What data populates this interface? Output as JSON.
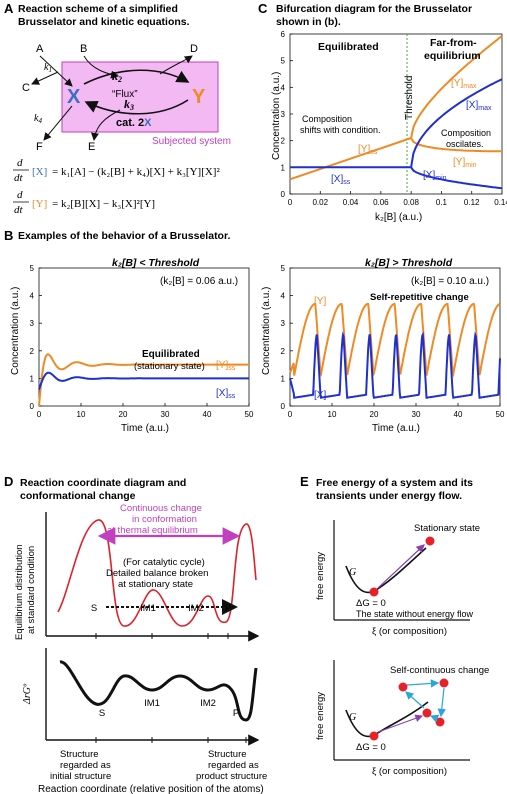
{
  "panel_a": {
    "letter": "A",
    "title_line1": "Reaction scheme of a simplified",
    "title_line2": "Brusselator and kinetic equations.",
    "species_a": "A",
    "species_b": "B",
    "species_c": "C",
    "species_d": "D",
    "species_e": "E",
    "species_f": "F",
    "x": "X",
    "y": "Y",
    "k1": "k",
    "k1_sub": "1",
    "k2": "k",
    "k2_sub": "2",
    "k3": "k",
    "k3_sub": "3",
    "k4": "k",
    "k4_sub": "4",
    "flux": "“Flux”",
    "cat": "cat. 2",
    "cat_x": "X",
    "subjected": "Subjected system",
    "eq1": "= k₁[A] − (k₂[B] + k₄)[X] + k₃[Y][X]²",
    "eq2": "= k₂[B][X] − k₃[X]²[Y]",
    "dt_d": "d",
    "dt_dt": "dt",
    "eq1_lhs": "[X]",
    "eq2_lhs": "[Y]",
    "colors": {
      "x": "#3a6fc4",
      "y": "#f08a24",
      "box": "#f2b9f2",
      "box_border": "#c040c0"
    }
  },
  "panel_b": {
    "letter": "B",
    "title": "Examples of the behavior of a Brusselator.",
    "left": {
      "heading": "k₂[B] < Threshold",
      "sub": "(k₂[B] = 0.06 a.u.)",
      "label_eq": "Equilibrated",
      "label_ss": "(stationary state)",
      "y_ss": "[Y]",
      "x_ss": "[X]",
      "ss_sub": "ss"
    },
    "right": {
      "heading": "k₂[B] > Threshold",
      "sub": "(k₂[B] = 0.10 a.u.)",
      "label": "Self-repetitive change",
      "y": "[Y]",
      "x": "[X]"
    },
    "ylabel": "Concentration (a.u.)",
    "xlabel": "Time (a.u.)",
    "xticks": [
      "0",
      "10",
      "20",
      "30",
      "40",
      "50"
    ],
    "yticks": [
      "0",
      "1",
      "2",
      "3",
      "4",
      "5"
    ]
  },
  "panel_c": {
    "letter": "C",
    "title_line1": "Bifurcation diagram for the Brusselator",
    "title_line2": "shown in (b).",
    "equilibrated": "Equilibrated",
    "far1": "Far-from-",
    "far2": "equilibrium",
    "threshold": "Threshold",
    "comp_shifts1": "Composition",
    "comp_shifts2": "shifts with condition.",
    "comp_osc1": "Composition",
    "comp_osc2": "oscilates.",
    "y_ss": "[Y]",
    "x_ss": "[X]",
    "ss": "ss",
    "y_max": "[Y]",
    "x_max": "[X]",
    "max": "max",
    "y_min": "[Y]",
    "x_min": "[X]",
    "min": "min",
    "ylabel": "Concentration (a.u.)",
    "xlabel": "k₂[B] (a.u.)",
    "xticks": [
      "0",
      "0.02",
      "0.04",
      "0.06",
      "0.08",
      "0.1",
      "0.12",
      "0.14"
    ],
    "yticks": [
      "0",
      "1",
      "2",
      "3",
      "4",
      "5",
      "6"
    ]
  },
  "panel_d": {
    "letter": "D",
    "title_line1": "Reaction coordinate diagram and",
    "title_line2": "conformational change",
    "cont1": "Continuous change",
    "cont2": "in conformation",
    "cont3": "at thermal equilibrium",
    "cat1": "(For catalytic cycle)",
    "cat2": "Detailed balance broken",
    "cat3": "at stationary state",
    "ylabel_top1": "Equilibrium distribution",
    "ylabel_top2": "at standard condition",
    "ylabel_bottom": "ΔrGº",
    "states": [
      "S",
      "IM1",
      "IM2",
      "P"
    ],
    "init1": "Structure",
    "init2": "regarded as",
    "init3": "initial structure",
    "prod1": "Structure",
    "prod2": "regarded as",
    "prod3": "product structure",
    "xlabel": "Reaction coordinate  (relative position of the atoms)"
  },
  "panel_e": {
    "letter": "E",
    "title_line1": "Free energy of a system and its",
    "title_line2": "transients under energy flow.",
    "stationary": "Stationary state",
    "g": "G",
    "dg": "ΔG = 0",
    "no_flow": "The state without energy flow",
    "self_cont": "Self-continuous change",
    "ylabel": "free energy",
    "xlabel": "ξ (or composition)"
  }
}
